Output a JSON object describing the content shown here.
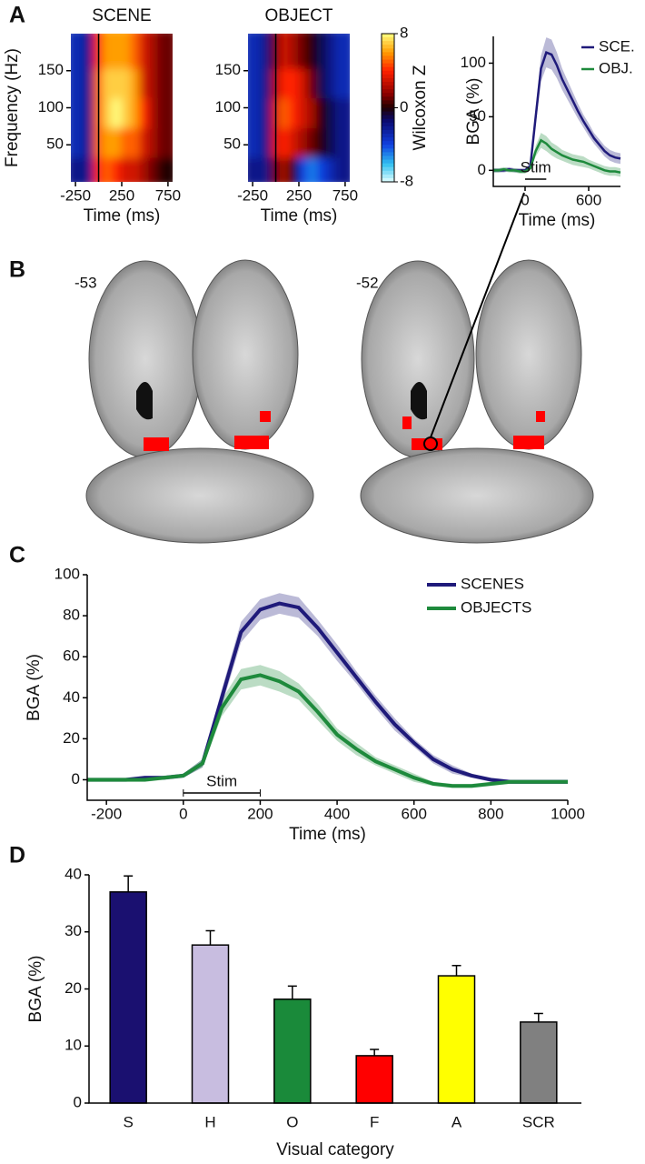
{
  "panel_labels": [
    "A",
    "B",
    "C",
    "D"
  ],
  "slice_labels": [
    "-53",
    "-52"
  ],
  "chart_data": [
    {
      "type": "heatmap",
      "title": "SCENE",
      "x_label": "Time (ms)",
      "y_label": "Frequency (Hz)",
      "x_bins": [
        -300,
        -200,
        -100,
        0,
        100,
        200,
        300,
        400,
        500,
        600,
        700,
        800
      ],
      "y_bins": [
        0,
        40,
        80,
        120,
        160,
        200
      ],
      "z": [
        [
          -2,
          -2,
          -2,
          4,
          5,
          4,
          3,
          3,
          2,
          1,
          0
        ],
        [
          -3,
          -3,
          -2,
          5,
          6,
          6,
          5,
          5,
          3,
          2,
          1
        ],
        [
          -3,
          -3,
          -2,
          5,
          7,
          8,
          7,
          6,
          4,
          2,
          1
        ],
        [
          -3,
          -3,
          -2,
          5,
          7,
          7,
          7,
          6,
          3,
          2,
          1
        ],
        [
          -3,
          -3,
          -2,
          4,
          6,
          6,
          6,
          5,
          3,
          2,
          1
        ]
      ],
      "xlim": [
        -300,
        800
      ],
      "ylim": [
        0,
        200
      ],
      "xticks": [
        -250,
        250,
        750
      ],
      "yticks": [
        50,
        100,
        150
      ],
      "zlim": [
        -8,
        8
      ]
    },
    {
      "type": "heatmap",
      "title": "OBJECT",
      "x_label": "Time (ms)",
      "x_bins": [
        -300,
        -200,
        -100,
        0,
        100,
        200,
        300,
        400,
        500,
        600,
        700,
        800
      ],
      "y_bins": [
        0,
        40,
        80,
        120,
        160,
        200
      ],
      "z": [
        [
          -2,
          -2,
          -2,
          1,
          2,
          0,
          -4,
          -5,
          -4,
          -3,
          -2
        ],
        [
          -3,
          -3,
          -2,
          3,
          4,
          3,
          2,
          1,
          0,
          -1,
          -2
        ],
        [
          -3,
          -3,
          -2,
          3,
          5,
          4,
          3,
          2,
          0,
          -1,
          -2
        ],
        [
          -3,
          -3,
          -2,
          2,
          4,
          4,
          3,
          1,
          -1,
          -2,
          -3
        ],
        [
          -3,
          -3,
          -2,
          1,
          3,
          2,
          1,
          0,
          -1,
          -2,
          -3
        ]
      ],
      "xlim": [
        -300,
        800
      ],
      "ylim": [
        0,
        200
      ],
      "xticks": [
        -250,
        250,
        750
      ],
      "yticks": [
        50,
        100,
        150
      ],
      "zlim": [
        -8,
        8
      ],
      "zticks": [
        8,
        0,
        -8
      ],
      "colorbar_label": "Wilcoxon Z"
    },
    {
      "type": "line",
      "x_label": "Time (ms)",
      "y_label": "BGA (%)",
      "x": [
        -300,
        -250,
        -200,
        -150,
        -100,
        -50,
        0,
        50,
        100,
        150,
        200,
        250,
        300,
        350,
        400,
        450,
        500,
        550,
        600,
        650,
        700,
        750,
        800,
        850,
        900
      ],
      "series": [
        {
          "name": "SCE.",
          "color": "#1f1a7a",
          "values": [
            0,
            0,
            0,
            1,
            0,
            0,
            0,
            4,
            50,
            95,
            110,
            108,
            98,
            85,
            75,
            65,
            55,
            46,
            38,
            30,
            24,
            18,
            14,
            12,
            11
          ],
          "errors": [
            2,
            2,
            2,
            2,
            2,
            2,
            2,
            3,
            8,
            12,
            14,
            14,
            12,
            10,
            9,
            8,
            7,
            6,
            6,
            5,
            5,
            5,
            5,
            5,
            5
          ]
        },
        {
          "name": "OBJ.",
          "color": "#1e8a3c",
          "values": [
            0,
            0,
            1,
            0,
            0,
            -1,
            -1,
            2,
            18,
            28,
            25,
            20,
            17,
            14,
            12,
            10,
            9,
            8,
            6,
            4,
            2,
            0,
            -1,
            -1,
            -2
          ],
          "errors": [
            2,
            2,
            2,
            2,
            2,
            2,
            2,
            2,
            5,
            7,
            7,
            6,
            6,
            5,
            5,
            5,
            5,
            5,
            4,
            4,
            4,
            4,
            4,
            4,
            4
          ]
        }
      ],
      "xlim": [
        -300,
        900
      ],
      "ylim": [
        -15,
        125
      ],
      "xticks": [
        0,
        600
      ],
      "yticks": [
        0,
        50,
        100
      ],
      "annotation": "Stim",
      "stim_interval": [
        0,
        200
      ],
      "legend": "upper right"
    },
    {
      "type": "line",
      "x_label": "Time (ms)",
      "y_label": "BGA (%)",
      "x": [
        -250,
        -200,
        -150,
        -100,
        -50,
        0,
        50,
        100,
        150,
        200,
        250,
        300,
        350,
        400,
        450,
        500,
        550,
        600,
        650,
        700,
        750,
        800,
        850,
        900,
        950,
        1000
      ],
      "series": [
        {
          "name": "SCENES",
          "color": "#1f1a7a",
          "values": [
            0,
            0,
            0,
            1,
            1,
            2,
            8,
            40,
            72,
            83,
            86,
            84,
            74,
            62,
            50,
            38,
            27,
            18,
            10,
            5,
            2,
            0,
            -1,
            -1,
            -1,
            -1
          ],
          "errors": [
            1,
            1,
            1,
            1,
            1,
            1,
            2,
            4,
            5,
            5,
            5,
            5,
            4,
            4,
            3,
            3,
            3,
            2,
            2,
            2,
            1,
            1,
            1,
            1,
            1,
            1
          ]
        },
        {
          "name": "OBJECTS",
          "color": "#1e8a3c",
          "values": [
            0,
            0,
            0,
            0,
            1,
            2,
            8,
            35,
            49,
            51,
            48,
            43,
            33,
            22,
            15,
            9,
            5,
            1,
            -2,
            -3,
            -3,
            -2,
            -1,
            -1,
            -1,
            -1
          ],
          "errors": [
            1,
            1,
            1,
            1,
            1,
            1,
            2,
            4,
            5,
            5,
            5,
            4,
            4,
            3,
            3,
            2,
            2,
            2,
            1,
            1,
            1,
            1,
            1,
            1,
            1,
            1
          ]
        }
      ],
      "xlim": [
        -250,
        1000
      ],
      "ylim": [
        -10,
        100
      ],
      "xticks": [
        -200,
        0,
        200,
        400,
        600,
        800,
        1000
      ],
      "yticks": [
        0,
        20,
        40,
        60,
        80,
        100
      ],
      "annotation": "Stim",
      "stim_interval": [
        0,
        200
      ],
      "legend": "upper right"
    },
    {
      "type": "bar",
      "x_label": "Visual category",
      "y_label": "BGA (%)",
      "categories": [
        "S",
        "H",
        "O",
        "F",
        "A",
        "SCR"
      ],
      "values": [
        37,
        27.7,
        18.2,
        8.3,
        22.3,
        14.2
      ],
      "errors": [
        2.8,
        2.5,
        2.3,
        1.1,
        1.8,
        1.5
      ],
      "colors": [
        "#1a1070",
        "#c8bde0",
        "#1a8a3a",
        "#ff0000",
        "#ffff00",
        "#808080"
      ],
      "ylim": [
        0,
        40
      ],
      "yticks": [
        0,
        10,
        20,
        30,
        40
      ]
    }
  ]
}
